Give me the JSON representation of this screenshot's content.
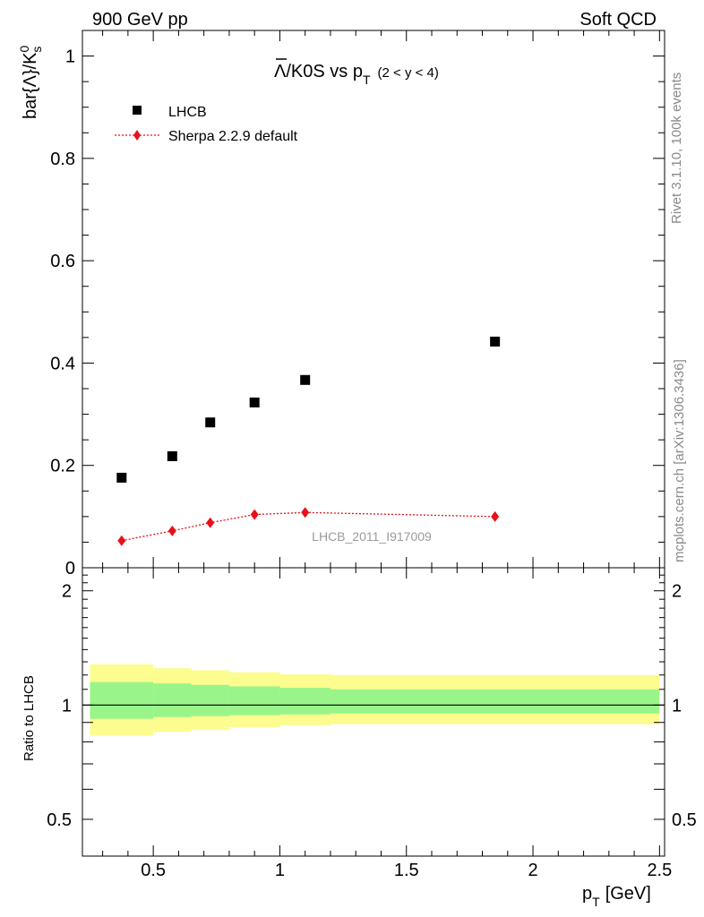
{
  "header": {
    "left": "900 GeV pp",
    "right": "Soft QCD"
  },
  "side_labels": {
    "rivet": "Rivet 3.1.10,  100k events",
    "source": "mcplots.cern.ch [arXiv:1306.3436]"
  },
  "chart_data": [
    {
      "type": "scatter",
      "title": "Λ̄/K0S vs pT (2 < y < 4)",
      "title_parts": {
        "main": "Λ/K0S vs p",
        "sub": "T",
        "range": "(2 < y < 4)"
      },
      "ylabel": "bar{Λ}/K0s",
      "ylabel_parts": {
        "main": "bar{Λ}/K",
        "sup": "0",
        "sub": "s"
      },
      "xlim": [
        0.22,
        2.52
      ],
      "ylim": [
        0,
        1.05
      ],
      "yticks": [
        0,
        0.2,
        0.4,
        0.6,
        0.8,
        1
      ],
      "ytick_labels": [
        "0",
        "0.2",
        "0.4",
        "0.6",
        "0.8",
        "1"
      ],
      "watermark": "LHCB_2011_I917009",
      "legend_position": "top-left",
      "series": [
        {
          "name": "LHCB",
          "marker": "square",
          "color": "#000000",
          "x": [
            0.375,
            0.575,
            0.725,
            0.9,
            1.1,
            1.85
          ],
          "y": [
            0.176,
            0.218,
            0.284,
            0.323,
            0.367,
            0.442
          ]
        },
        {
          "name": "Sherpa 2.2.9 default",
          "marker": "diamond",
          "line": "dotted",
          "color": "#e8101a",
          "x": [
            0.375,
            0.575,
            0.725,
            0.9,
            1.1,
            1.85
          ],
          "y": [
            0.053,
            0.072,
            0.088,
            0.104,
            0.108,
            0.1
          ]
        }
      ]
    },
    {
      "type": "area",
      "ylabel": "Ratio to LHCB",
      "xlabel": "p_T [GeV]",
      "xlabel_parts": {
        "main": "p",
        "sub": "T",
        "unit": "[GeV]"
      },
      "xlim": [
        0.22,
        2.52
      ],
      "ylim": [
        0.4,
        2.3
      ],
      "xticks": [
        0.5,
        1,
        1.5,
        2,
        2.5
      ],
      "xtick_labels": [
        "0.5",
        "1",
        "1.5",
        "2",
        "2.5"
      ],
      "yticks": [
        0.5,
        1,
        2
      ],
      "ytick_labels": [
        "0.5",
        "1",
        "2"
      ],
      "reference_line": 1,
      "colors": {
        "inner_band": "#99f589",
        "outer_band": "#fcfc8f"
      },
      "bins": [
        {
          "x0": 0.25,
          "x1": 0.5,
          "inner": [
            0.92,
            1.15
          ],
          "outer": [
            0.83,
            1.28
          ]
        },
        {
          "x0": 0.5,
          "x1": 0.65,
          "inner": [
            0.93,
            1.14
          ],
          "outer": [
            0.85,
            1.25
          ]
        },
        {
          "x0": 0.65,
          "x1": 0.8,
          "inner": [
            0.935,
            1.13
          ],
          "outer": [
            0.86,
            1.235
          ]
        },
        {
          "x0": 0.8,
          "x1": 1.0,
          "inner": [
            0.94,
            1.12
          ],
          "outer": [
            0.875,
            1.22
          ]
        },
        {
          "x0": 1.0,
          "x1": 1.2,
          "inner": [
            0.945,
            1.11
          ],
          "outer": [
            0.885,
            1.205
          ]
        },
        {
          "x0": 1.2,
          "x1": 2.5,
          "inner": [
            0.95,
            1.1
          ],
          "outer": [
            0.89,
            1.2
          ]
        }
      ]
    }
  ]
}
